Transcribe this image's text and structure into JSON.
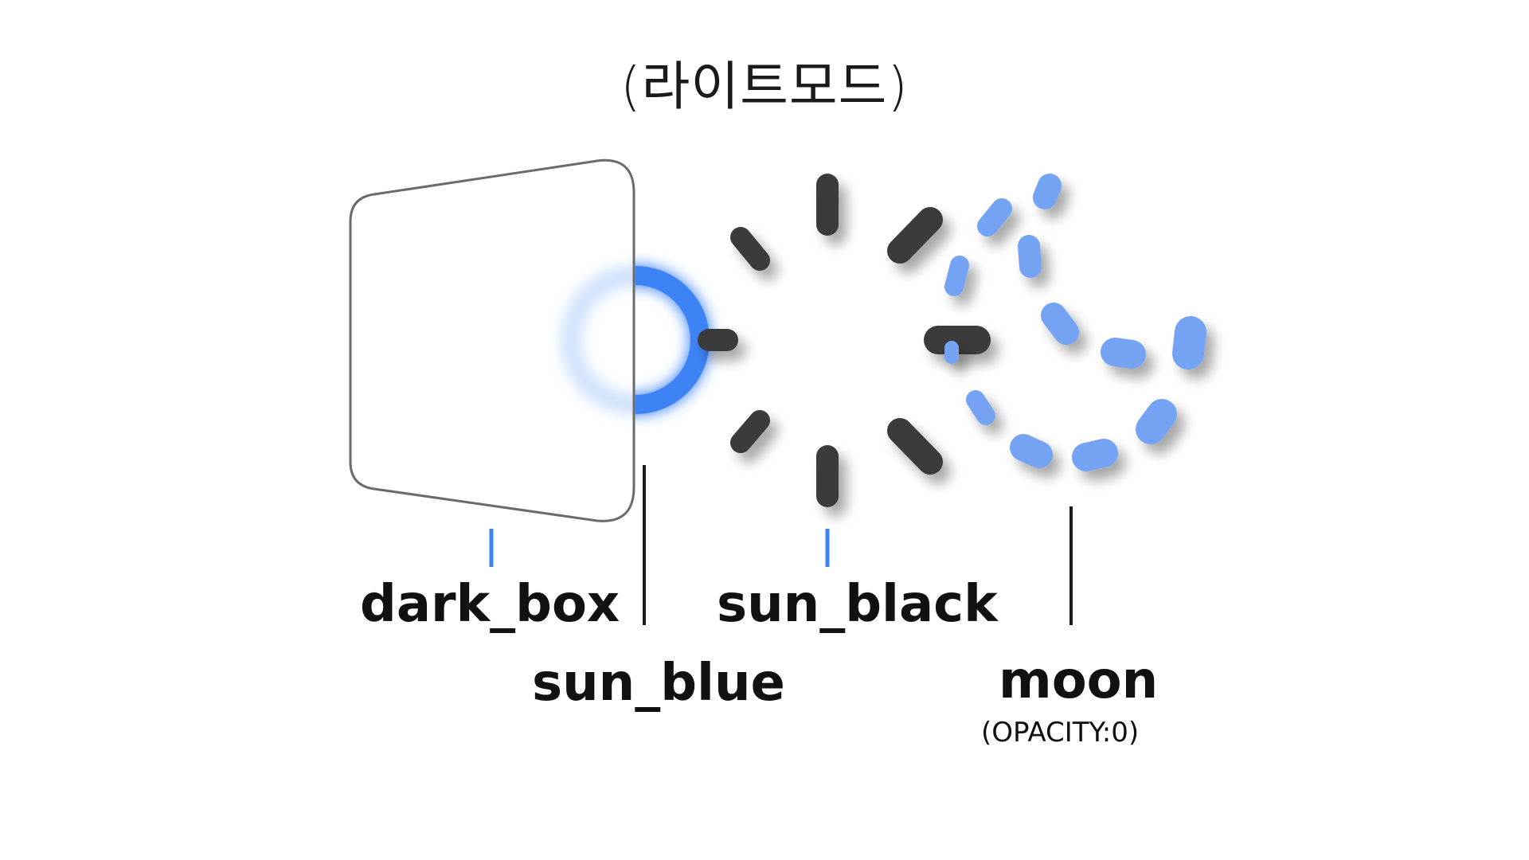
{
  "title": "(라이트모드)",
  "labels": {
    "dark_box": "dark_box",
    "sun_blue": "sun_blue",
    "sun_black": "sun_black",
    "moon": "moon",
    "moon_note": "(OPACITY:0)"
  },
  "colors": {
    "blue_accent": "#3d83f5",
    "moon_blue": "#74a3f4",
    "ray_dark": "#3b3b3b",
    "box_stroke": "#6b6b6b",
    "connector_dark": "#1a1a1a"
  }
}
